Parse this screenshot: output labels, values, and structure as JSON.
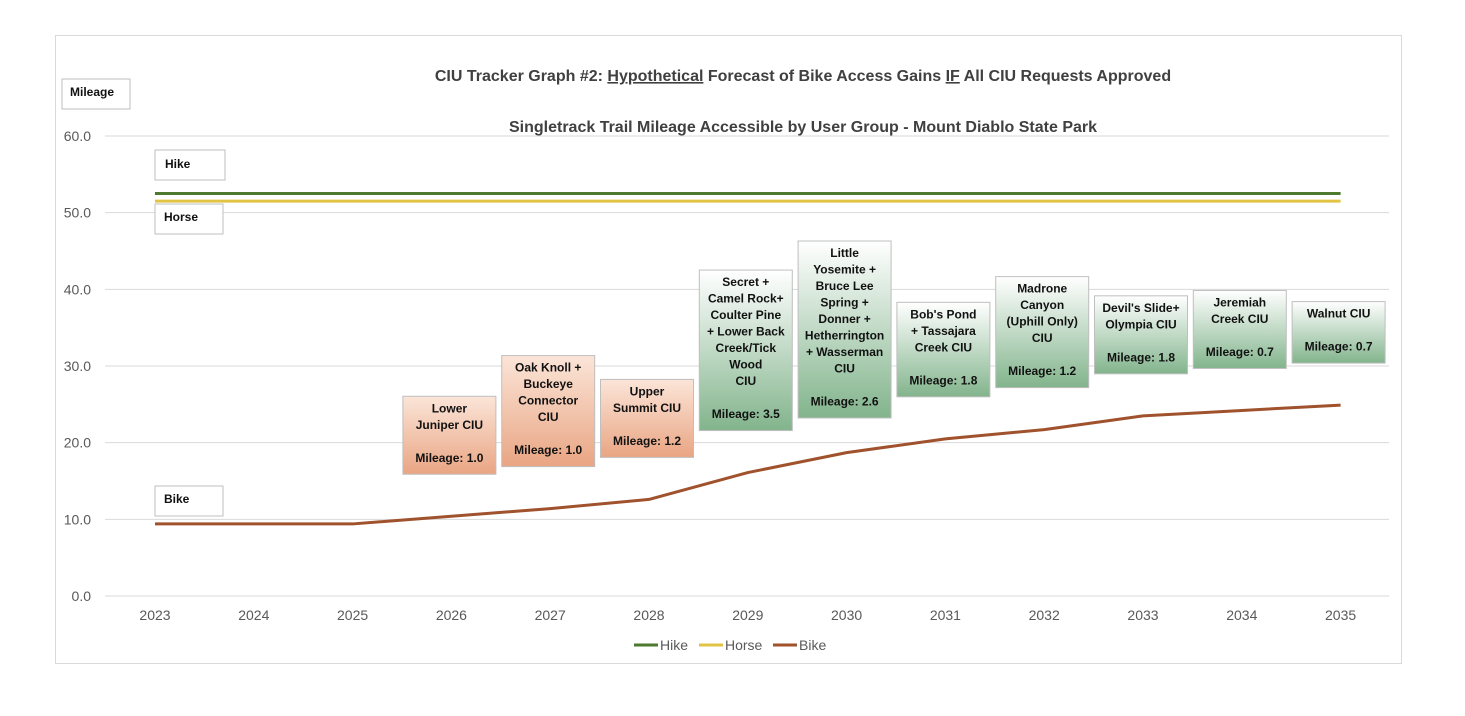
{
  "chart_data": {
    "type": "line",
    "title_parts": {
      "prefix": "CIU Tracker Graph #2:  ",
      "underlined_1": "Hypothetical",
      "middle": " Forecast of Bike Access Gains ",
      "underlined_2": "IF",
      "suffix": " All CIU Requests Approved"
    },
    "subtitle": "Singletrack Trail Mileage Accessible by User Group - Mount Diablo State Park",
    "ylabel": "Mileage",
    "ylim": [
      0,
      60
    ],
    "yticks": [
      "0.0",
      "10.0",
      "20.0",
      "30.0",
      "40.0",
      "50.0",
      "60.0"
    ],
    "x": [
      "2023",
      "2024",
      "2025",
      "2026",
      "2027",
      "2028",
      "2029",
      "2030",
      "2031",
      "2032",
      "2033",
      "2034",
      "2035"
    ],
    "series": [
      {
        "name": "Hike",
        "color": "#4e7a2f",
        "values": [
          52.5,
          52.5,
          52.5,
          52.5,
          52.5,
          52.5,
          52.5,
          52.5,
          52.5,
          52.5,
          52.5,
          52.5,
          52.5
        ]
      },
      {
        "name": "Horse",
        "color": "#e2c445",
        "values": [
          51.5,
          51.5,
          51.5,
          51.5,
          51.5,
          51.5,
          51.5,
          51.5,
          51.5,
          51.5,
          51.5,
          51.5,
          51.5
        ]
      },
      {
        "name": "Bike",
        "color": "#a0522d",
        "values": [
          9.4,
          9.4,
          9.4,
          10.4,
          11.4,
          12.6,
          16.1,
          18.7,
          20.5,
          21.7,
          23.5,
          24.2,
          24.9
        ]
      }
    ],
    "series_labels": [
      "Hike",
      "Horse",
      "Bike"
    ],
    "legend_position": "bottom",
    "annotations": [
      {
        "year": "2026",
        "color": "orange",
        "lines": [
          "Lower",
          "Juniper CIU",
          "",
          "Mileage: 1.0"
        ]
      },
      {
        "year": "2027",
        "color": "orange",
        "lines": [
          "Oak Knoll +",
          "Buckeye",
          "Connector",
          "CIU",
          "",
          "Mileage: 1.0"
        ]
      },
      {
        "year": "2028",
        "color": "orange",
        "lines": [
          "Upper",
          "Summit CIU",
          "",
          "Mileage: 1.2"
        ]
      },
      {
        "year": "2029",
        "color": "green",
        "lines": [
          "Secret +",
          "Camel Rock+",
          "Coulter Pine",
          "+ Lower Back",
          "Creek/Tick",
          "Wood",
          "CIU",
          "",
          "Mileage: 3.5"
        ]
      },
      {
        "year": "2030",
        "color": "green",
        "lines": [
          "Little",
          "Yosemite +",
          "Bruce Lee",
          "Spring +",
          "Donner +",
          "Hetherrington",
          "+ Wasserman",
          "CIU",
          "",
          "Mileage: 2.6"
        ]
      },
      {
        "year": "2031",
        "color": "green",
        "lines": [
          "Bob's Pond",
          "+ Tassajara",
          "Creek CIU",
          "",
          "Mileage: 1.8"
        ]
      },
      {
        "year": "2032",
        "color": "green",
        "lines": [
          "Madrone",
          "Canyon",
          "(Uphill Only)",
          "CIU",
          "",
          "Mileage: 1.2"
        ]
      },
      {
        "year": "2033",
        "color": "green",
        "lines": [
          "Devil's Slide+",
          "Olympia  CIU",
          "",
          "Mileage: 1.8"
        ]
      },
      {
        "year": "2034",
        "color": "green",
        "lines": [
          "Jeremiah",
          "Creek CIU",
          "",
          "Mileage: 0.7"
        ]
      },
      {
        "year": "2035",
        "color": "green",
        "lines": [
          "Walnut CIU",
          "",
          "Mileage: 0.7"
        ]
      }
    ]
  }
}
